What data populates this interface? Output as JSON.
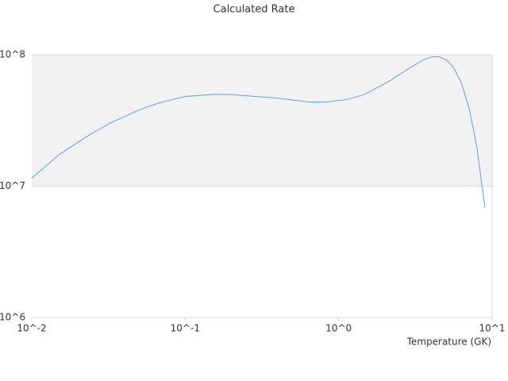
{
  "chart_data": {
    "type": "line",
    "title": "Calculated Rate",
    "x_label": "Temperature (GK)",
    "log_x": true,
    "log_y": true,
    "xlim": [
      0.01,
      10
    ],
    "ylim": [
      1000000,
      100000000
    ],
    "xticks": [
      {
        "value": 0.01,
        "label": "10^-2"
      },
      {
        "value": 0.1,
        "label": "10^-1"
      },
      {
        "value": 1,
        "label": "10^0"
      },
      {
        "value": 10,
        "label": "10^1"
      }
    ],
    "yticks": [
      {
        "value": 1000000,
        "label": "10^6"
      },
      {
        "value": 10000000,
        "label": "10^7"
      },
      {
        "value": 100000000,
        "label": "10^8"
      }
    ],
    "grid": true,
    "band_color": "#f2f2f2",
    "series": [
      {
        "color": "#5aa0e6",
        "x": [
          0.01,
          0.0152,
          0.023,
          0.0329,
          0.0499,
          0.0674,
          0.1,
          0.155,
          0.2,
          0.4,
          0.64,
          0.82,
          1.13,
          1.48,
          2.12,
          2.85,
          3.62,
          4.08,
          4.49,
          5.06,
          5.63,
          6.34,
          7.14,
          7.95,
          8.97
        ],
        "values": [
          11500000,
          17500000,
          24000000,
          30400000,
          38000000,
          43000000,
          48200000,
          50000000,
          49800000,
          46800000,
          43700000,
          43700000,
          45600000,
          50000000,
          62700000,
          78300000,
          92400000,
          96600000,
          96600000,
          91000000,
          79500000,
          60000000,
          37500000,
          20000000,
          6870000
        ]
      }
    ]
  }
}
